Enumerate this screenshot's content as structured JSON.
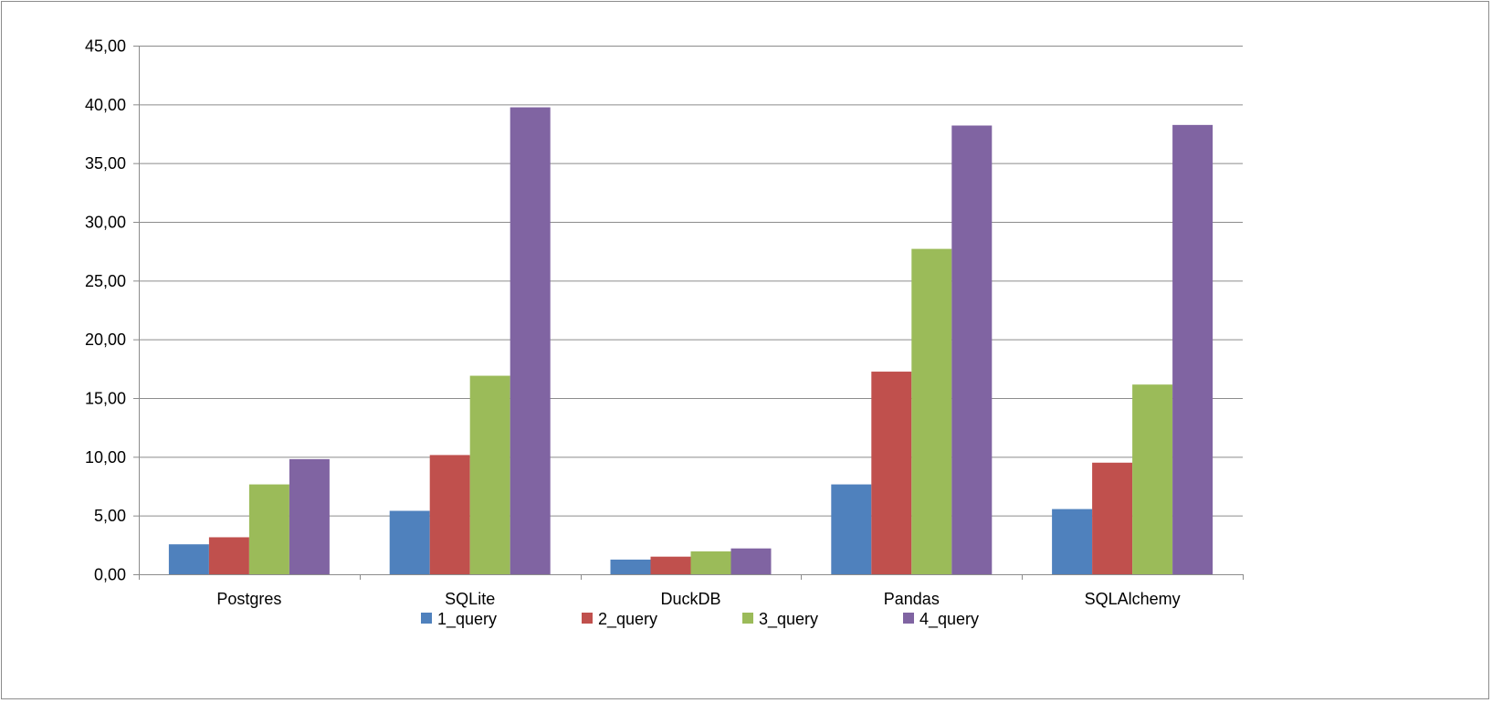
{
  "chart_data": {
    "type": "bar",
    "title": "",
    "xlabel": "",
    "ylabel": "",
    "categories": [
      "Postgres",
      "SQLite",
      "DuckDB",
      "Pandas",
      "SQLAlchemy"
    ],
    "series": [
      {
        "name": "1_query",
        "color": "#4F81BD",
        "values": [
          2.55,
          5.4,
          1.25,
          7.65,
          5.55
        ]
      },
      {
        "name": "2_query",
        "color": "#C0504D",
        "values": [
          3.15,
          10.15,
          1.5,
          17.25,
          9.5
        ]
      },
      {
        "name": "3_query",
        "color": "#9BBB59",
        "values": [
          7.65,
          16.9,
          1.95,
          27.7,
          16.15
        ]
      },
      {
        "name": "4_query",
        "color": "#8064A2",
        "values": [
          9.8,
          39.75,
          2.2,
          38.2,
          38.25
        ]
      }
    ],
    "ylim": [
      0,
      45
    ],
    "y_ticks": [
      "0,00",
      "5,00",
      "10,00",
      "15,00",
      "20,00",
      "25,00",
      "30,00",
      "35,00",
      "40,00",
      "45,00"
    ],
    "y_tick_values": [
      0,
      5,
      10,
      15,
      20,
      25,
      30,
      35,
      40,
      45
    ],
    "grid": true,
    "legend_position": "bottom"
  }
}
